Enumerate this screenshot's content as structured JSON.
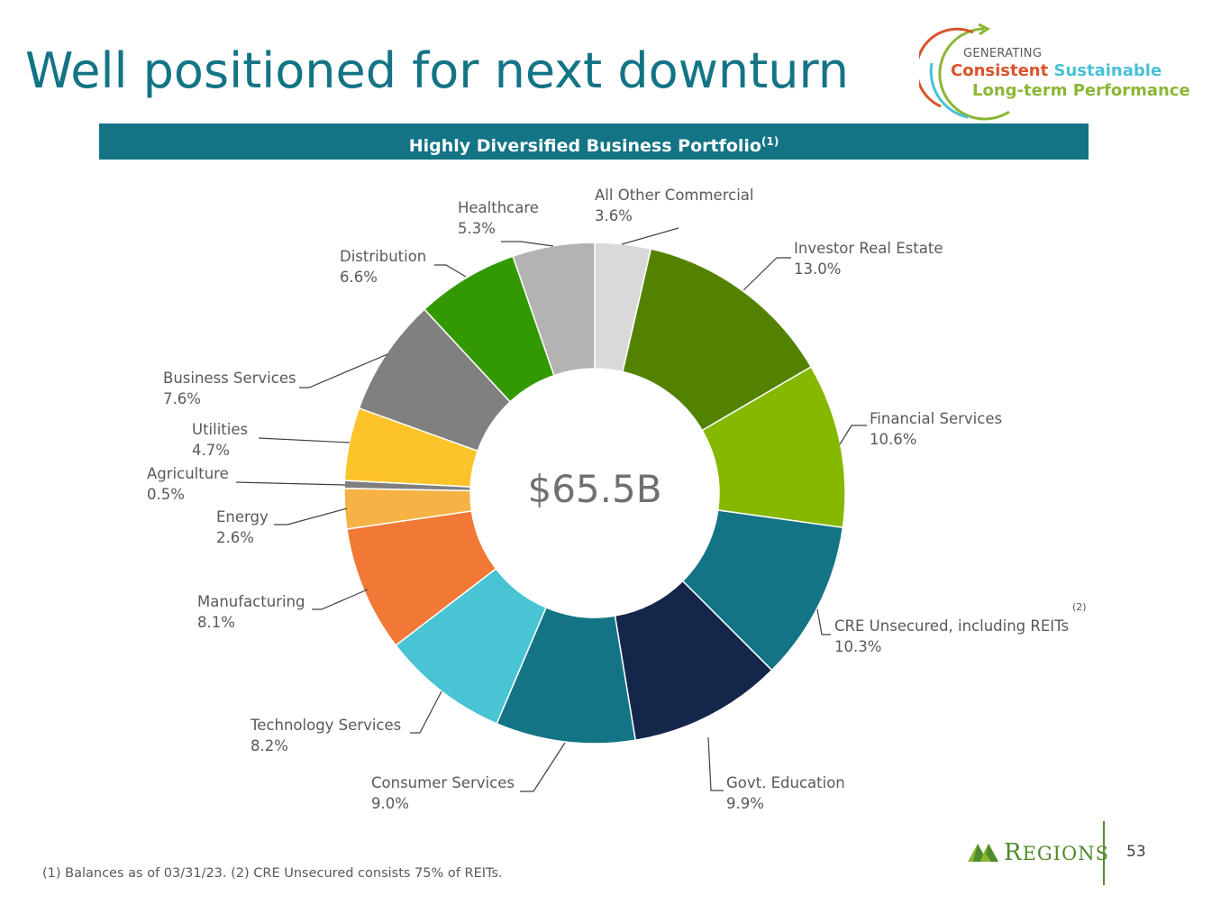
{
  "slide": {
    "title": "Well positioned for next downturn",
    "banner": "Highly Diversified Business Portfolio",
    "banner_sup": "(1)",
    "footnote": "(1) Balances as of 03/31/23. (2) CRE Unsecured consists 75% of REITs.",
    "page_number": "53",
    "note_marker": "(2)"
  },
  "tagline": {
    "line1": "GENERATING",
    "consistent": "Consistent",
    "sustainable": "Sustainable",
    "line3": "Long-term Performance"
  },
  "logo": {
    "text": "Regions",
    "icon": "regions-triangle-logo"
  },
  "colors": {
    "title": "#137485",
    "banner": "#137485",
    "accent_green": "#8bb735",
    "accent_orange": "#d9532b",
    "accent_cyan": "#47c1d6"
  },
  "chart_data": {
    "type": "pie",
    "subtype": "donut",
    "title": "Highly Diversified Business Portfolio",
    "center_label": "$65.5B",
    "units": "percent of total",
    "slices": [
      {
        "label": "All Other Commercial",
        "value": 3.6,
        "display": "3.6%",
        "color": "#d9d9d9"
      },
      {
        "label": "Investor Real Estate",
        "value": 13.0,
        "display": "13.0%",
        "color": "#538200"
      },
      {
        "label": "Financial Services",
        "value": 10.6,
        "display": "10.6%",
        "color": "#86b800"
      },
      {
        "label": "CRE Unsecured, including REITs",
        "value": 10.3,
        "display": "10.3%",
        "color": "#137485"
      },
      {
        "label": "Govt. Education",
        "value": 9.9,
        "display": "9.9%",
        "color": "#14264a"
      },
      {
        "label": "Consumer Services",
        "value": 9.0,
        "display": "9.0%",
        "color": "#137485"
      },
      {
        "label": "Technology Services",
        "value": 8.2,
        "display": "8.2%",
        "color": "#48c4d4"
      },
      {
        "label": "Manufacturing",
        "value": 8.1,
        "display": "8.1%",
        "color": "#f27836"
      },
      {
        "label": "Energy",
        "value": 2.6,
        "display": "2.6%",
        "color": "#f6b244"
      },
      {
        "label": "Agriculture",
        "value": 0.5,
        "display": "0.5%",
        "color": "#7f7f7f"
      },
      {
        "label": "Utilities",
        "value": 4.7,
        "display": "4.7%",
        "color": "#fdc42a"
      },
      {
        "label": "Business Services",
        "value": 7.6,
        "display": "7.6%",
        "color": "#808080"
      },
      {
        "label": "Distribution",
        "value": 6.6,
        "display": "6.6%",
        "color": "#339900"
      },
      {
        "label": "Healthcare",
        "value": 5.3,
        "display": "5.3%",
        "color": "#b3b3b3"
      }
    ]
  }
}
